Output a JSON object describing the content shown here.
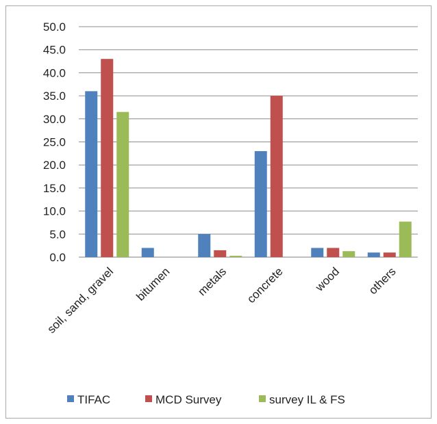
{
  "chart_data": {
    "type": "bar",
    "categories": [
      "soil, sand, gravel",
      "bitumen",
      "metals",
      "concrete",
      "wood",
      "others"
    ],
    "series": [
      {
        "name": "TIFAC",
        "values": [
          36.0,
          2.0,
          5.0,
          23.0,
          2.0,
          1.0
        ],
        "color": "#4f81bd"
      },
      {
        "name": "MCD Survey",
        "values": [
          43.0,
          0.0,
          1.5,
          35.0,
          2.0,
          1.0
        ],
        "color": "#c0504d"
      },
      {
        "name": "survey IL & FS",
        "values": [
          31.5,
          0.0,
          0.3,
          0.0,
          1.3,
          7.7
        ],
        "color": "#9bbb59"
      }
    ],
    "ylim": [
      0,
      50
    ],
    "yticks": [
      "0.0",
      "5.0",
      "10.0",
      "15.0",
      "20.0",
      "25.0",
      "30.0",
      "35.0",
      "40.0",
      "45.0",
      "50.0"
    ],
    "grid": true,
    "legend_position": "bottom"
  }
}
